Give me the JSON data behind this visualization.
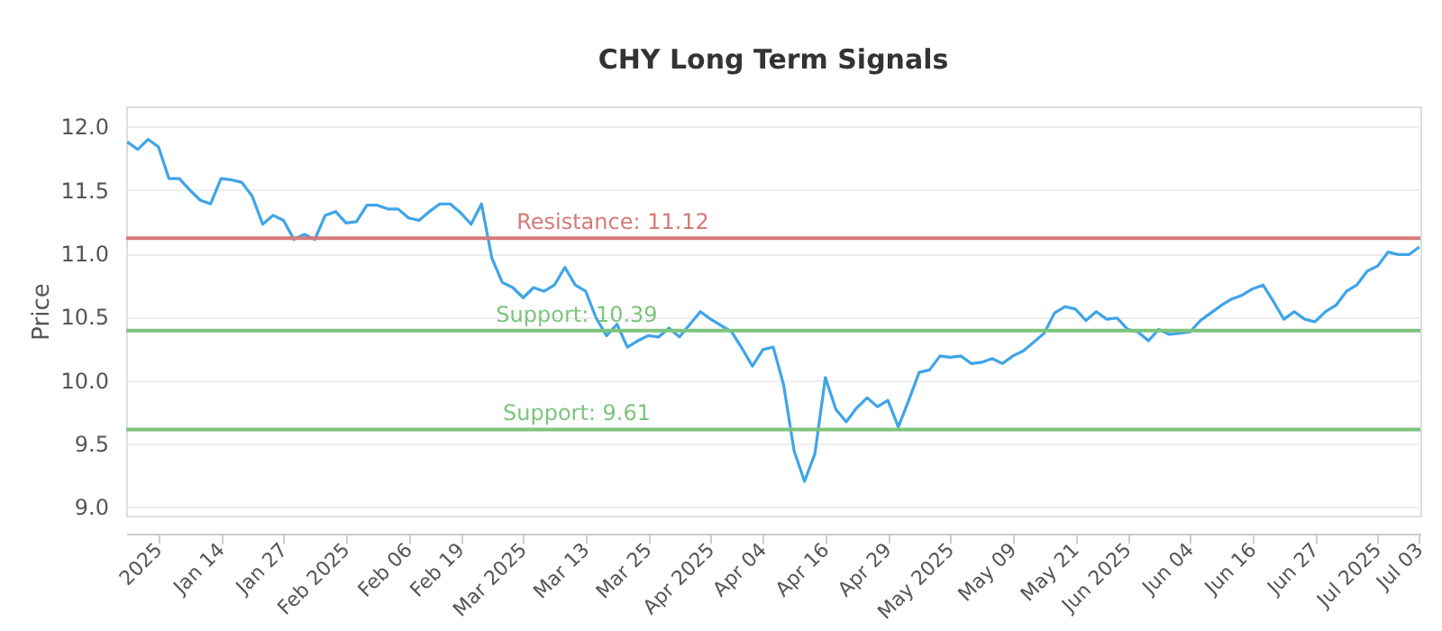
{
  "chart_data": {
    "type": "line",
    "title": "CHY Long Term Signals",
    "ylabel": "Price",
    "categories": [
      null,
      null,
      null,
      "2025",
      null,
      null,
      null,
      null,
      null,
      "Jan 14",
      null,
      null,
      null,
      null,
      null,
      "Jan 27",
      null,
      null,
      null,
      null,
      null,
      "Feb 2025",
      null,
      null,
      null,
      null,
      null,
      "Feb 06",
      null,
      null,
      null,
      null,
      "Feb 19",
      null,
      null,
      null,
      null,
      null,
      "Mar 2025",
      null,
      null,
      null,
      null,
      null,
      "Mar 13",
      null,
      null,
      null,
      null,
      null,
      "Mar 25",
      null,
      null,
      null,
      null,
      null,
      "Apr 2025",
      null,
      null,
      null,
      null,
      "Apr 04",
      null,
      null,
      null,
      null,
      null,
      "Apr 16",
      null,
      null,
      null,
      null,
      null,
      "Apr 29",
      null,
      null,
      null,
      null,
      null,
      "May 2025",
      null,
      null,
      null,
      null,
      null,
      "May 09",
      null,
      null,
      null,
      null,
      null,
      "May 21",
      null,
      null,
      null,
      null,
      "Jun 2025",
      null,
      null,
      null,
      null,
      null,
      "Jun 04",
      null,
      null,
      null,
      null,
      null,
      "Jun 16",
      null,
      null,
      null,
      null,
      null,
      "Jun 27",
      null,
      null,
      null,
      null,
      null,
      "Jul 2025",
      null,
      null,
      null,
      "Jul 03"
    ],
    "series": [
      {
        "color": "#3fa4e8",
        "values": [
          11.88,
          11.82,
          11.9,
          11.84,
          11.59,
          11.59,
          11.5,
          11.42,
          11.39,
          11.59,
          11.58,
          11.56,
          11.45,
          11.23,
          11.3,
          11.26,
          11.11,
          11.15,
          11.11,
          11.3,
          11.33,
          11.24,
          11.25,
          11.38,
          11.38,
          11.35,
          11.35,
          11.28,
          11.26,
          11.33,
          11.39,
          11.39,
          11.32,
          11.23,
          11.39,
          10.96,
          10.77,
          10.73,
          10.65,
          10.73,
          10.7,
          10.75,
          10.89,
          10.75,
          10.7,
          10.49,
          10.35,
          10.44,
          10.26,
          10.31,
          10.35,
          10.34,
          10.41,
          10.34,
          10.44,
          10.54,
          10.48,
          10.43,
          10.38,
          10.25,
          10.11,
          10.24,
          10.26,
          9.96,
          9.44,
          9.2,
          9.42,
          10.02,
          9.77,
          9.67,
          9.78,
          9.86,
          9.79,
          9.84,
          9.63,
          9.84,
          10.06,
          10.08,
          10.19,
          10.18,
          10.19,
          10.13,
          10.14,
          10.17,
          10.13,
          10.19,
          10.23,
          10.3,
          10.37,
          10.53,
          10.58,
          10.56,
          10.47,
          10.54,
          10.48,
          10.49,
          10.4,
          10.38,
          10.31,
          10.4,
          10.36,
          10.37,
          10.38,
          10.47,
          10.53,
          10.59,
          10.64,
          10.67,
          10.72,
          10.75,
          10.62,
          10.48,
          10.54,
          10.48,
          10.46,
          10.54,
          10.59,
          10.7,
          10.75,
          10.86,
          10.9,
          11.01,
          10.99,
          10.99,
          11.05
        ]
      }
    ],
    "ylim": [
      8.93,
      12.16
    ],
    "yticks": [
      {
        "value": 9,
        "label": "9.0"
      },
      9.5,
      {
        "value": 10,
        "label": "10.0"
      },
      10.5,
      {
        "value": 11,
        "label": "11.0"
      },
      11.5,
      {
        "value": 12,
        "label": "12.0"
      }
    ],
    "grid": "y",
    "marker": "none",
    "line_style": "solid",
    "ref_lines": [
      {
        "axis": "y",
        "value": 11.12,
        "label": "Resistance: 11.12",
        "color": "#d47a7a"
      },
      {
        "axis": "y",
        "value": 10.39,
        "label": "Support: 10.39",
        "color": "#7cc47c"
      },
      {
        "axis": "y",
        "value": 9.61,
        "label": "Support: 9.61",
        "color": "#7cc47c"
      }
    ]
  }
}
